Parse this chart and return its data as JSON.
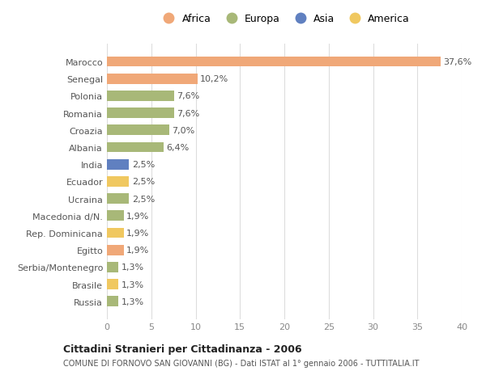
{
  "countries": [
    "Russia",
    "Brasile",
    "Serbia/Montenegro",
    "Egitto",
    "Rep. Dominicana",
    "Macedonia d/N.",
    "Ucraina",
    "Ecuador",
    "India",
    "Albania",
    "Croazia",
    "Romania",
    "Polonia",
    "Senegal",
    "Marocco"
  ],
  "values": [
    1.3,
    1.3,
    1.3,
    1.9,
    1.9,
    1.9,
    2.5,
    2.5,
    2.5,
    6.4,
    7.0,
    7.6,
    7.6,
    10.2,
    37.6
  ],
  "labels": [
    "1,3%",
    "1,3%",
    "1,3%",
    "1,9%",
    "1,9%",
    "1,9%",
    "2,5%",
    "2,5%",
    "2,5%",
    "6,4%",
    "7,0%",
    "7,6%",
    "7,6%",
    "10,2%",
    "37,6%"
  ],
  "continents": [
    "Europa",
    "America",
    "Europa",
    "Africa",
    "America",
    "Europa",
    "Europa",
    "America",
    "Asia",
    "Europa",
    "Europa",
    "Europa",
    "Europa",
    "Africa",
    "Africa"
  ],
  "colors": {
    "Africa": "#F0A878",
    "Europa": "#A8B878",
    "Asia": "#6080C0",
    "America": "#F0C860"
  },
  "xlim": [
    0,
    40
  ],
  "xticks": [
    0,
    5,
    10,
    15,
    20,
    25,
    30,
    35,
    40
  ],
  "title": "Cittadini Stranieri per Cittadinanza - 2006",
  "subtitle": "COMUNE DI FORNOVO SAN GIOVANNI (BG) - Dati ISTAT al 1° gennaio 2006 - TUTTITALIA.IT",
  "bg_color": "#ffffff",
  "grid_color": "#dddddd",
  "legend_order": [
    "Africa",
    "Europa",
    "Asia",
    "America"
  ]
}
